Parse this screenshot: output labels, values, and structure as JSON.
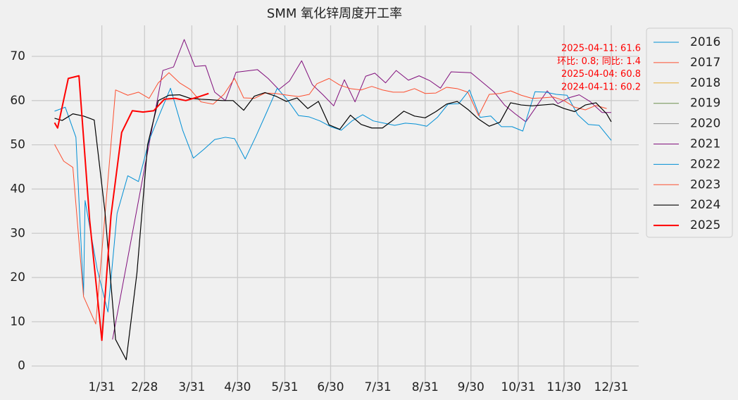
{
  "chart_data": {
    "type": "line",
    "title": "SMM 氧化锌周度开工率",
    "xlim": [
      -15,
      383
    ],
    "ylim": [
      -4.5,
      77
    ],
    "xticks": [
      {
        "value": 31,
        "label": "1/31"
      },
      {
        "value": 59,
        "label": "2/28"
      },
      {
        "value": 90,
        "label": "3/31"
      },
      {
        "value": 120,
        "label": "4/30"
      },
      {
        "value": 151,
        "label": "5/31"
      },
      {
        "value": 181,
        "label": "6/30"
      },
      {
        "value": 212,
        "label": "7/31"
      },
      {
        "value": 243,
        "label": "8/31"
      },
      {
        "value": 273,
        "label": "9/30"
      },
      {
        "value": 304,
        "label": "10/31"
      },
      {
        "value": 334,
        "label": "11/30"
      },
      {
        "value": 365,
        "label": "12/31"
      }
    ],
    "yticks": [
      0,
      10,
      20,
      30,
      40,
      50,
      60,
      70
    ],
    "grid": true,
    "legend": "outside upper right",
    "annotations": [
      "2025-04-11: 61.6",
      "环比: 0.8; 同比: 1.4",
      "2025-04-04: 60.8",
      "2024-04-11: 60.2"
    ],
    "annotation_color": "#ff0000",
    "series": [
      {
        "name": "2016",
        "color": "#008fd5",
        "linewidth": 1,
        "x": [],
        "values": []
      },
      {
        "name": "2017",
        "color": "#fc4f30",
        "linewidth": 1,
        "x": [],
        "values": []
      },
      {
        "name": "2018",
        "color": "#e5ae38",
        "linewidth": 1,
        "x": [],
        "values": []
      },
      {
        "name": "2019",
        "color": "#6d904f",
        "linewidth": 1,
        "x": [],
        "values": []
      },
      {
        "name": "2020",
        "color": "#8b8b8b",
        "linewidth": 1,
        "x": [],
        "values": []
      },
      {
        "name": "2021",
        "color": "#810f7c",
        "linewidth": 1,
        "x": [
          38,
          71,
          78,
          85,
          92,
          99,
          105,
          112,
          119,
          126,
          133,
          140,
          147,
          154,
          162,
          169,
          176,
          183,
          190,
          197,
          204,
          210,
          217,
          224,
          232,
          239,
          246,
          253,
          260,
          273,
          288,
          295,
          302,
          309,
          323,
          330,
          337,
          344,
          351,
          359,
          365
        ],
        "values": [
          6,
          66.8,
          67.6,
          73.8,
          67.7,
          67.9,
          61.9,
          60,
          66.4,
          66.7,
          67,
          65,
          62.5,
          64.4,
          69,
          63.6,
          61.3,
          58.8,
          64.7,
          59.7,
          65.5,
          66.2,
          64,
          66.8,
          64.6,
          65.6,
          64.5,
          62.8,
          66.5,
          66.3,
          62,
          59,
          57,
          55.2,
          62.2,
          59.3,
          60.6,
          61.3,
          59.8,
          57.3,
          57.3
        ]
      },
      {
        "name": "2022",
        "color": "#008fd5",
        "linewidth": 1,
        "x": [
          0,
          7,
          14,
          19,
          20,
          28,
          35,
          41,
          48,
          55,
          62,
          69,
          76,
          84,
          91,
          98,
          105,
          112,
          118,
          125,
          132,
          139,
          146,
          153,
          160,
          167,
          174,
          181,
          188,
          195,
          202,
          209,
          216,
          223,
          230,
          237,
          244,
          251,
          258,
          265,
          272,
          279,
          286,
          293,
          300,
          307,
          315,
          322,
          329,
          336,
          343,
          350,
          357,
          365
        ],
        "values": [
          57.6,
          58.5,
          51.7,
          16,
          37.4,
          21.8,
          12.2,
          34.5,
          43,
          41.7,
          51,
          57,
          62.8,
          53.3,
          47,
          49,
          51.2,
          51.7,
          51.4,
          46.8,
          51.9,
          57.3,
          62.8,
          60,
          56.6,
          56.3,
          55.4,
          54.1,
          53.3,
          55.4,
          56.8,
          55.4,
          54.9,
          54.4,
          54.9,
          54.7,
          54.2,
          56.2,
          59.2,
          59.3,
          62.4,
          56.2,
          56.5,
          54.1,
          54.1,
          53.1,
          62,
          61.9,
          61.4,
          61.2,
          56.8,
          54.6,
          54.4,
          51
        ]
      },
      {
        "name": "2023",
        "color": "#fc4f30",
        "linewidth": 1,
        "x": [
          0,
          6,
          12,
          19,
          27,
          40,
          48,
          55,
          62,
          68,
          75,
          82,
          89,
          96,
          104,
          111,
          118,
          124,
          131,
          138,
          145,
          153,
          160,
          167,
          172,
          180,
          187,
          194,
          201,
          208,
          215,
          222,
          229,
          236,
          243,
          250,
          257,
          264,
          271,
          278,
          285,
          292,
          299,
          306,
          313,
          320,
          327,
          334,
          341,
          348,
          355,
          362
        ],
        "values": [
          50.1,
          46.3,
          44.9,
          15.7,
          9.5,
          62.4,
          61.2,
          61.9,
          60.5,
          64,
          66.3,
          64,
          62.5,
          59.7,
          59.2,
          61.4,
          65,
          60.6,
          60.5,
          61.7,
          61.6,
          61.2,
          60.9,
          61.4,
          63.8,
          65,
          63.5,
          62.7,
          62.4,
          63.2,
          62.4,
          61.9,
          61.9,
          62.7,
          61.6,
          61.7,
          63,
          62.7,
          61.9,
          56.6,
          61.4,
          61.6,
          62.2,
          61.2,
          60.5,
          60.6,
          60.8,
          60,
          58.5,
          57.9,
          58.9,
          58.2
        ]
      },
      {
        "name": "2024",
        "color": "#000000",
        "linewidth": 1.2,
        "x": [
          0,
          5,
          12,
          19,
          26,
          33,
          40,
          47,
          54,
          61,
          68,
          75,
          82,
          89,
          96,
          102,
          110,
          117,
          124,
          131,
          138,
          145,
          152,
          159,
          166,
          173,
          180,
          187,
          194,
          201,
          208,
          215,
          222,
          229,
          236,
          243,
          250,
          257,
          264,
          271,
          278,
          285,
          292,
          299,
          306,
          313,
          320,
          327,
          334,
          341,
          348,
          355,
          362,
          365
        ],
        "values": [
          56,
          55.5,
          57,
          56.5,
          55.6,
          35,
          6,
          1.4,
          21,
          50,
          60,
          61.2,
          61.3,
          60.5,
          60.3,
          60.2,
          60,
          60,
          57.8,
          61,
          61.8,
          61,
          59.8,
          60.6,
          58.2,
          59.8,
          54.5,
          53.5,
          56.7,
          54.6,
          53.8,
          53.8,
          55.6,
          57.6,
          56.5,
          56.1,
          57.5,
          59.2,
          59.8,
          58,
          55.8,
          54.2,
          55.1,
          59.5,
          59,
          58.8,
          59,
          59.2,
          58.2,
          57.5,
          59,
          59.5,
          57,
          55.2
        ]
      },
      {
        "name": "2025",
        "color": "#ff0000",
        "linewidth": 2,
        "x": [
          0,
          2,
          9,
          16,
          23,
          31,
          37,
          44,
          51,
          58,
          65,
          72,
          79,
          86,
          94,
          101
        ],
        "values": [
          55,
          53.8,
          65,
          65.6,
          33,
          5.8,
          34,
          52.8,
          57.7,
          57.4,
          57.7,
          60.3,
          60.5,
          60,
          60.8,
          61.6
        ]
      }
    ]
  }
}
